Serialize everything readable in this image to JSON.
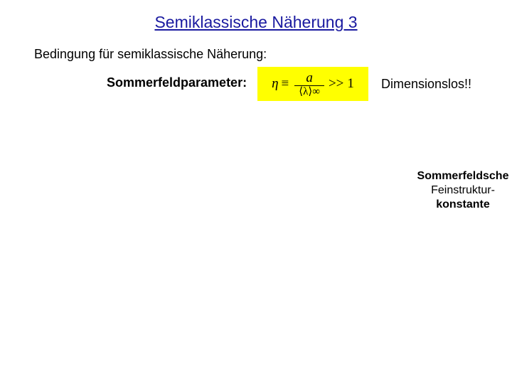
{
  "title": "Semiklassische Näherung 3",
  "conditionText": "Bedingung für semiklassische Näherung:",
  "paramLabel": "Sommerfeldparameter:",
  "formula": {
    "eta": "η",
    "equiv": "≡",
    "numerator": "a",
    "denominator": "⟨λ⟩∞",
    "gg": ">>",
    "one": "1",
    "bg": "#ffff00"
  },
  "dimensionLabel": "Dimensionslos!!",
  "sommerfeld": {
    "line1": "Sommerfeldsche",
    "line2": "Feinstruktur-",
    "line3": "konstante"
  },
  "colors": {
    "titleColor": "#1a1aa0",
    "textColor": "#000000",
    "background": "#ffffff"
  },
  "fonts": {
    "titleSize": 23,
    "bodySize": 18,
    "annotationSize": 16
  }
}
